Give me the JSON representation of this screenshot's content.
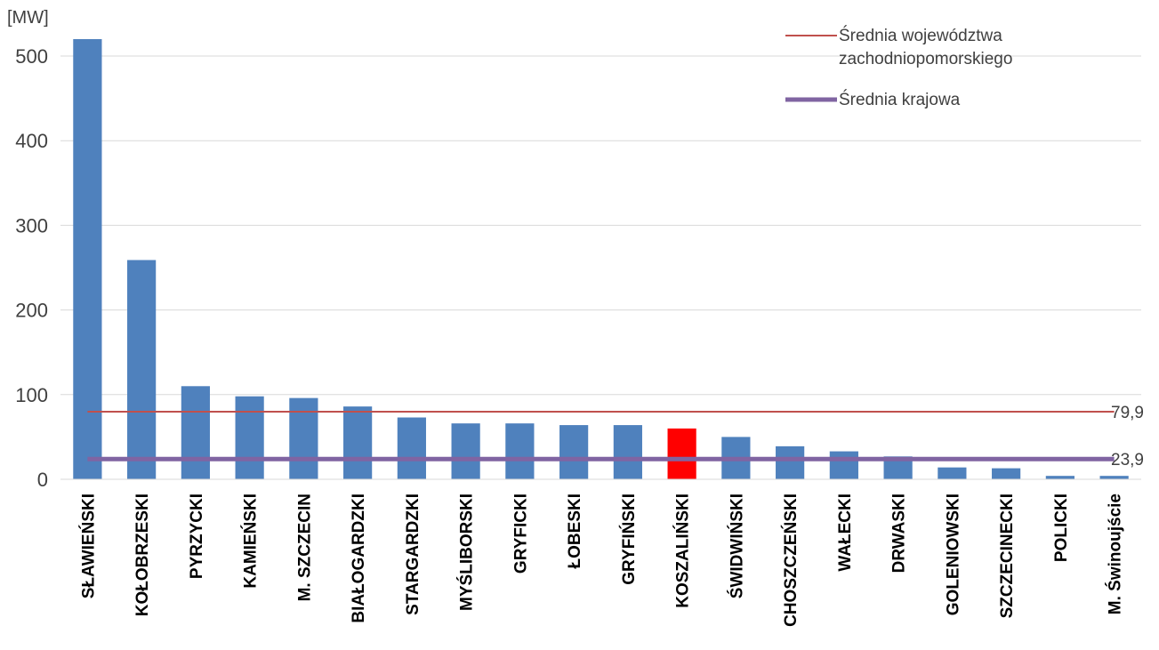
{
  "chart_data": {
    "type": "bar",
    "unit_label": "[MW]",
    "ylim": [
      0,
      520
    ],
    "yticks": [
      "0",
      "100",
      "200",
      "300",
      "400",
      "500"
    ],
    "grid": true,
    "categories": [
      "SŁAWIEŃSKI",
      "KOŁOBRZESKI",
      "PYRZYCKI",
      "KAMIEŃSKI",
      "M. SZCZECIN",
      "BIAŁOGARDZKI",
      "STARGARDZKI",
      "MYŚLIBORSKI",
      "GRYFICKI",
      "ŁOBESKI",
      "GRYFIŃSKI",
      "KOSZALIŃSKI",
      "ŚWIDWIŃSKI",
      "CHOSZCZEŃSKI",
      "WAŁECKI",
      "DRWASKI",
      "GOLENIOWSKI",
      "SZCZECINECKI",
      "POLICKI",
      "M. Świnoujście"
    ],
    "values": [
      520,
      259,
      110,
      98,
      96,
      86,
      73,
      66,
      66,
      64,
      64,
      60,
      50,
      39,
      33,
      27,
      14,
      13,
      4,
      4
    ],
    "bar_color": "#4f81bd",
    "highlight": {
      "category": "KOSZALIŃSKI",
      "color": "#ff0000"
    },
    "reference_lines": [
      {
        "name": "Średnia województwa zachodniopomorskiego",
        "legend_lines": [
          "Średnia województwa",
          "zachodniopomorskiego"
        ],
        "value": 79.9,
        "label": "79,9",
        "color": "#c0504d"
      },
      {
        "name": "Średnia krajowa",
        "legend_lines": [
          "Średnia krajowa"
        ],
        "value": 23.9,
        "label": "23,9",
        "color": "#8064a2"
      }
    ],
    "legend_position": "top-right"
  }
}
